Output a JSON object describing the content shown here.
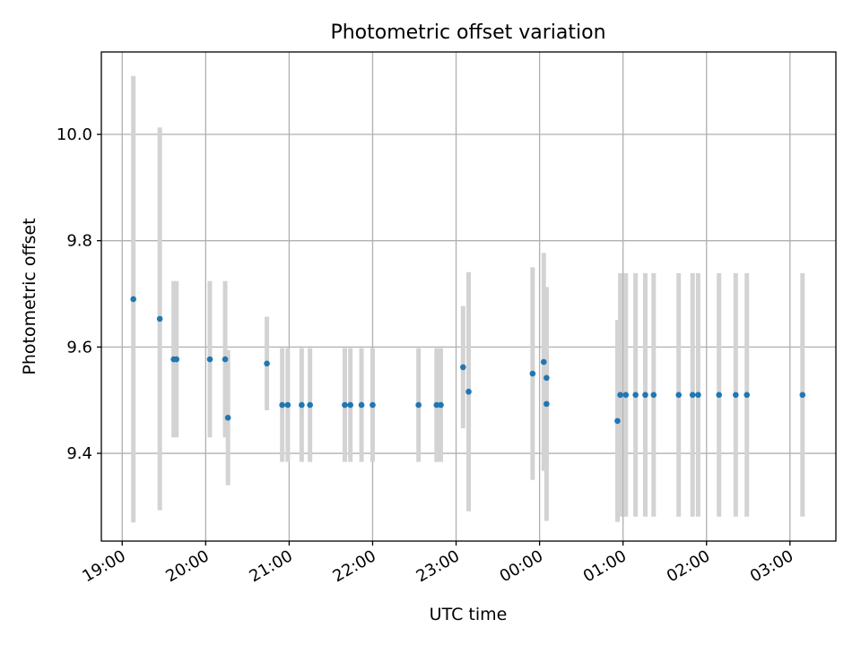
{
  "chart_data": {
    "type": "scatter",
    "title": "Photometric offset variation",
    "xlabel": "UTC time",
    "ylabel": "Photometric offset",
    "xlim_hours": [
      18.75,
      27.55
    ],
    "ylim": [
      9.235,
      10.155
    ],
    "grid": true,
    "x_ticks": [
      {
        "hour": 19,
        "label": "19:00"
      },
      {
        "hour": 20,
        "label": "20:00"
      },
      {
        "hour": 21,
        "label": "21:00"
      },
      {
        "hour": 22,
        "label": "22:00"
      },
      {
        "hour": 23,
        "label": "23:00"
      },
      {
        "hour": 24,
        "label": "00:00"
      },
      {
        "hour": 25,
        "label": "01:00"
      },
      {
        "hour": 26,
        "label": "02:00"
      },
      {
        "hour": 27,
        "label": "03:00"
      }
    ],
    "y_ticks": [
      {
        "value": 9.4,
        "label": "9.4"
      },
      {
        "value": 9.6,
        "label": "9.6"
      },
      {
        "value": 9.8,
        "label": "9.8"
      },
      {
        "value": 10.0,
        "label": "10.0"
      }
    ],
    "points": [
      {
        "x": "19:08",
        "y": 9.69,
        "yerr": 0.42
      },
      {
        "x": "19:27",
        "y": 9.653,
        "yerr": 0.36
      },
      {
        "x": "19:37",
        "y": 9.577,
        "yerr": 0.147
      },
      {
        "x": "19:39",
        "y": 9.577,
        "yerr": 0.147
      },
      {
        "x": "20:03",
        "y": 9.577,
        "yerr": 0.147
      },
      {
        "x": "20:14",
        "y": 9.577,
        "yerr": 0.147
      },
      {
        "x": "20:16",
        "y": 9.467,
        "yerr": 0.127
      },
      {
        "x": "20:44",
        "y": 9.569,
        "yerr": 0.088
      },
      {
        "x": "20:55",
        "y": 9.491,
        "yerr": 0.107
      },
      {
        "x": "20:59",
        "y": 9.491,
        "yerr": 0.107
      },
      {
        "x": "21:09",
        "y": 9.491,
        "yerr": 0.107
      },
      {
        "x": "21:15",
        "y": 9.491,
        "yerr": 0.107
      },
      {
        "x": "21:40",
        "y": 9.491,
        "yerr": 0.107
      },
      {
        "x": "21:44",
        "y": 9.491,
        "yerr": 0.107
      },
      {
        "x": "21:52",
        "y": 9.491,
        "yerr": 0.107
      },
      {
        "x": "22:00",
        "y": 9.491,
        "yerr": 0.107
      },
      {
        "x": "22:33",
        "y": 9.491,
        "yerr": 0.107
      },
      {
        "x": "22:46",
        "y": 9.491,
        "yerr": 0.107
      },
      {
        "x": "22:49",
        "y": 9.491,
        "yerr": 0.107
      },
      {
        "x": "23:05",
        "y": 9.562,
        "yerr": 0.115
      },
      {
        "x": "23:09",
        "y": 9.516,
        "yerr": 0.225
      },
      {
        "x": "23:55",
        "y": 9.55,
        "yerr": 0.2
      },
      {
        "x": "00:03",
        "y": 9.572,
        "yerr": 0.205
      },
      {
        "x": "00:05",
        "y": 9.542,
        "yerr": 0.17
      },
      {
        "x": "00:05",
        "y": 9.493,
        "yerr": 0.22
      },
      {
        "x": "00:56",
        "y": 9.461,
        "yerr": 0.19
      },
      {
        "x": "00:58",
        "y": 9.51,
        "yerr": 0.229
      },
      {
        "x": "01:02",
        "y": 9.51,
        "yerr": 0.229
      },
      {
        "x": "01:09",
        "y": 9.51,
        "yerr": 0.229
      },
      {
        "x": "01:16",
        "y": 9.51,
        "yerr": 0.229
      },
      {
        "x": "01:22",
        "y": 9.51,
        "yerr": 0.229
      },
      {
        "x": "01:40",
        "y": 9.51,
        "yerr": 0.229
      },
      {
        "x": "01:50",
        "y": 9.51,
        "yerr": 0.229
      },
      {
        "x": "01:54",
        "y": 9.51,
        "yerr": 0.229
      },
      {
        "x": "02:09",
        "y": 9.51,
        "yerr": 0.229
      },
      {
        "x": "02:21",
        "y": 9.51,
        "yerr": 0.229
      },
      {
        "x": "02:29",
        "y": 9.51,
        "yerr": 0.229
      },
      {
        "x": "03:09",
        "y": 9.51,
        "yerr": 0.229
      }
    ],
    "colors": {
      "point": "#1f77b4",
      "errorbar": "#d3d3d3",
      "grid": "#b0b0b0"
    }
  }
}
